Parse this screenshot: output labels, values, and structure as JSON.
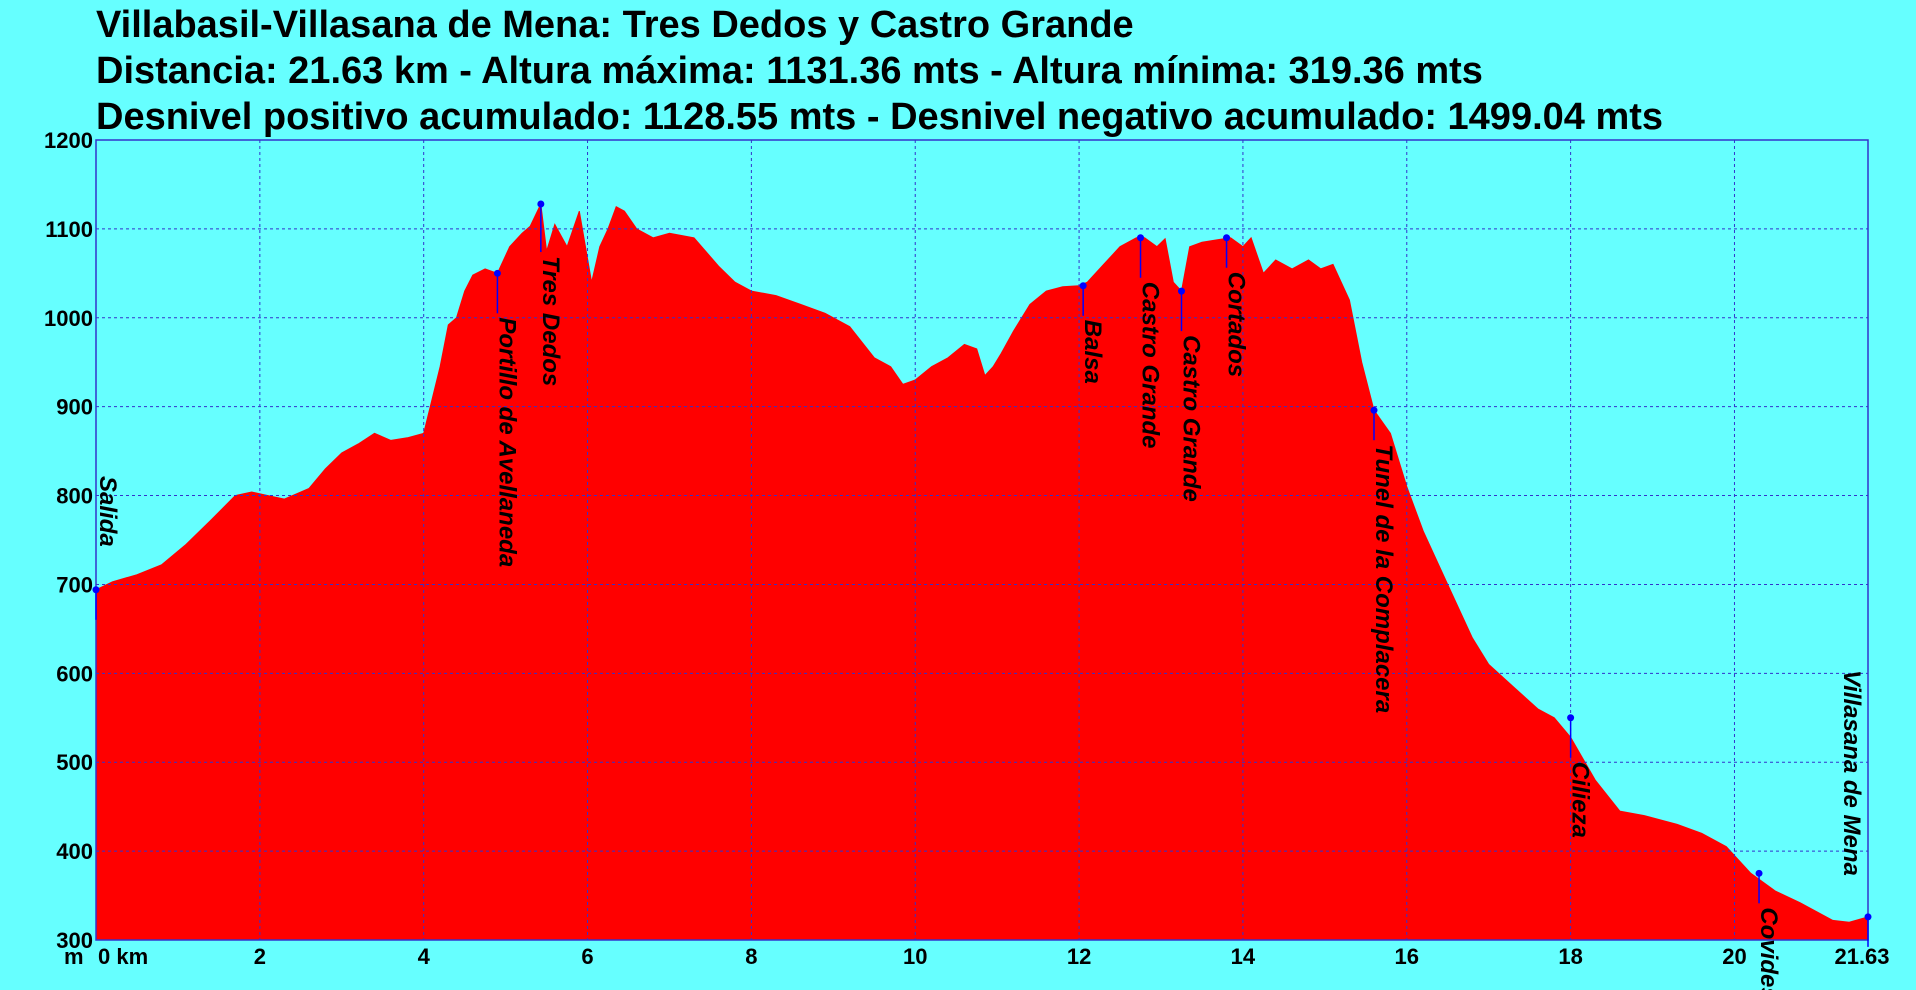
{
  "title": {
    "line1": "Villabasil-Villasana de Mena: Tres Dedos y Castro Grande",
    "line2": "Distancia: 21.63 km - Altura máxima: 1131.36 mts - Altura mínima: 319.36 mts",
    "line3": "Desnivel positivo acumulado: 1128.55 mts - Desnivel negativo acumulado: 1499.04 mts"
  },
  "colors": {
    "background": "#66ffff",
    "fill": "#ff0000",
    "grid": "#3333cc",
    "marker": "#0000ff"
  },
  "chart_data": {
    "type": "area",
    "xlabel": "km",
    "ylabel": "m",
    "x_unit_label": "m 0 km",
    "xlim": [
      0,
      21.63
    ],
    "ylim": [
      300,
      1200
    ],
    "x_ticks": [
      0,
      2,
      4,
      6,
      8,
      10,
      12,
      14,
      16,
      18,
      20,
      21.63
    ],
    "x_tick_labels": [
      "0 km",
      "2",
      "4",
      "6",
      "8",
      "10",
      "12",
      "14",
      "16",
      "18",
      "20",
      "21.63"
    ],
    "y_ticks": [
      300,
      400,
      500,
      600,
      700,
      800,
      900,
      1000,
      1100,
      1200
    ],
    "y_tick_labels": [
      "300",
      "400",
      "500",
      "600",
      "700",
      "800",
      "900",
      "1000",
      "1100",
      "1200"
    ],
    "grid": true,
    "series": [
      {
        "x": [
          0,
          0.2,
          0.5,
          0.8,
          1.1,
          1.4,
          1.7,
          1.9,
          2.1,
          2.3,
          2.6,
          2.8,
          3.0,
          3.2,
          3.4,
          3.6,
          3.8,
          4.0,
          4.2,
          4.3,
          4.4,
          4.5,
          4.6,
          4.75,
          4.9,
          5.05,
          5.2,
          5.3,
          5.43,
          5.5,
          5.6,
          5.75,
          5.9,
          6.05,
          6.15,
          6.25,
          6.35,
          6.45,
          6.6,
          6.8,
          7.0,
          7.3,
          7.6,
          7.8,
          8.0,
          8.3,
          8.6,
          8.9,
          9.2,
          9.5,
          9.7,
          9.85,
          10.0,
          10.2,
          10.4,
          10.6,
          10.75,
          10.85,
          10.95,
          11.05,
          11.2,
          11.4,
          11.6,
          11.8,
          12.0,
          12.1,
          12.3,
          12.5,
          12.7,
          12.8,
          12.95,
          13.05,
          13.15,
          13.25,
          13.35,
          13.5,
          13.7,
          13.85,
          14.0,
          14.1,
          14.25,
          14.4,
          14.6,
          14.8,
          14.95,
          15.1,
          15.3,
          15.45,
          15.6,
          15.8,
          16.0,
          16.2,
          16.5,
          16.8,
          17.0,
          17.3,
          17.6,
          17.8,
          18.0,
          18.3,
          18.6,
          18.9,
          19.1,
          19.3,
          19.6,
          19.9,
          20.2,
          20.5,
          20.8,
          21.0,
          21.2,
          21.4,
          21.63
        ],
        "y": [
          694,
          703,
          711,
          722,
          745,
          772,
          800,
          804,
          800,
          796,
          808,
          830,
          848,
          858,
          870,
          862,
          865,
          870,
          945,
          992,
          1000,
          1030,
          1048,
          1055,
          1050,
          1080,
          1095,
          1103,
          1128,
          1075,
          1105,
          1080,
          1120,
          1040,
          1080,
          1100,
          1125,
          1120,
          1100,
          1090,
          1095,
          1090,
          1058,
          1040,
          1030,
          1025,
          1015,
          1005,
          990,
          955,
          945,
          925,
          930,
          945,
          955,
          970,
          965,
          935,
          945,
          960,
          985,
          1015,
          1030,
          1035,
          1036,
          1040,
          1060,
          1080,
          1090,
          1090,
          1080,
          1089,
          1040,
          1030,
          1080,
          1085,
          1088,
          1090,
          1080,
          1090,
          1050,
          1065,
          1055,
          1065,
          1055,
          1060,
          1020,
          950,
          896,
          870,
          810,
          760,
          700,
          640,
          610,
          585,
          560,
          550,
          528,
          480,
          445,
          440,
          435,
          430,
          420,
          405,
          375,
          355,
          342,
          332,
          322,
          320,
          326
        ]
      }
    ],
    "annotations": [
      {
        "label": "Salida",
        "x": 0,
        "y": 694
      },
      {
        "label": "Portillo de Avellaneda",
        "x": 4.9,
        "y": 1050
      },
      {
        "label": "Tres Dedos",
        "x": 5.43,
        "y": 1128
      },
      {
        "label": "Balsa",
        "x": 12.05,
        "y": 1036
      },
      {
        "label": "Castro Grande",
        "x": 12.75,
        "y": 1090
      },
      {
        "label": "Castro Grande",
        "x": 13.25,
        "y": 1030
      },
      {
        "label": "Cortados",
        "x": 13.8,
        "y": 1090
      },
      {
        "label": "Tunel de la Complacera",
        "x": 15.6,
        "y": 896
      },
      {
        "label": "Cilieza",
        "x": 18.0,
        "y": 550
      },
      {
        "label": "Covides",
        "x": 20.3,
        "y": 375
      },
      {
        "label": "Villasana de Mena",
        "x": 21.63,
        "y": 326
      }
    ]
  }
}
